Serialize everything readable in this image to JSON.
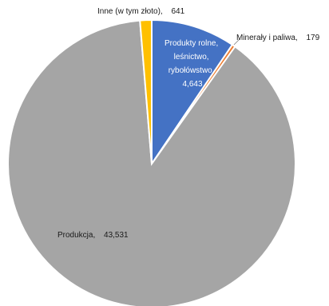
{
  "chart_data": {
    "type": "pie",
    "title": "",
    "slices": [
      {
        "name": "Produkty rolne, leśnictwo, rybołówstwo",
        "label_lines": [
          "Produkty rolne,",
          "leśnictwo,",
          "rybołówstwo,"
        ],
        "value_text": "4,643",
        "value": 4643,
        "color": "#4472c4"
      },
      {
        "name": "Minerały i paliwa",
        "value_text": "179",
        "value": 179,
        "color": "#ed7d31"
      },
      {
        "name": "Produkcja",
        "value_text": "43,531",
        "value": 43531,
        "color": "#a5a5a5"
      },
      {
        "name": "Inne (w tym złoto)",
        "value_text": "641",
        "value": 641,
        "color": "#ffc000"
      }
    ],
    "start_angle_deg": 0,
    "direction": "clockwise",
    "legend": "none"
  }
}
